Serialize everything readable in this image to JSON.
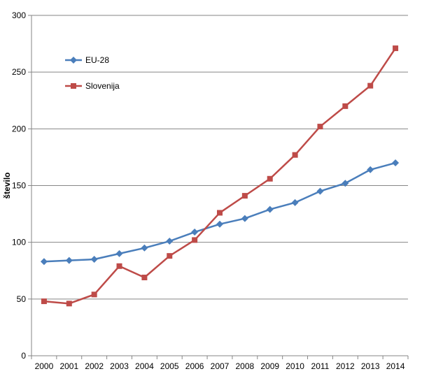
{
  "chart_data": {
    "type": "line",
    "title": "",
    "xlabel": "",
    "ylabel": "število",
    "x": [
      "2000",
      "2001",
      "2002",
      "2003",
      "2004",
      "2005",
      "2006",
      "2007",
      "2008",
      "2009",
      "2010",
      "2011",
      "2012",
      "2013",
      "2014"
    ],
    "ylim": [
      0,
      300
    ],
    "yticks": [
      0,
      50,
      100,
      150,
      200,
      250,
      300
    ],
    "grid": true,
    "legend_position": "top-left",
    "series": [
      {
        "name": "EU-28",
        "color": "#4a7ebb",
        "marker": "diamond",
        "values": [
          83,
          84,
          85,
          90,
          95,
          101,
          109,
          116,
          121,
          129,
          135,
          145,
          152,
          164,
          170
        ]
      },
      {
        "name": "Slovenija",
        "color": "#be4b48",
        "marker": "square",
        "values": [
          48,
          46,
          54,
          79,
          69,
          88,
          102,
          126,
          141,
          156,
          177,
          202,
          220,
          238,
          271
        ]
      }
    ]
  }
}
